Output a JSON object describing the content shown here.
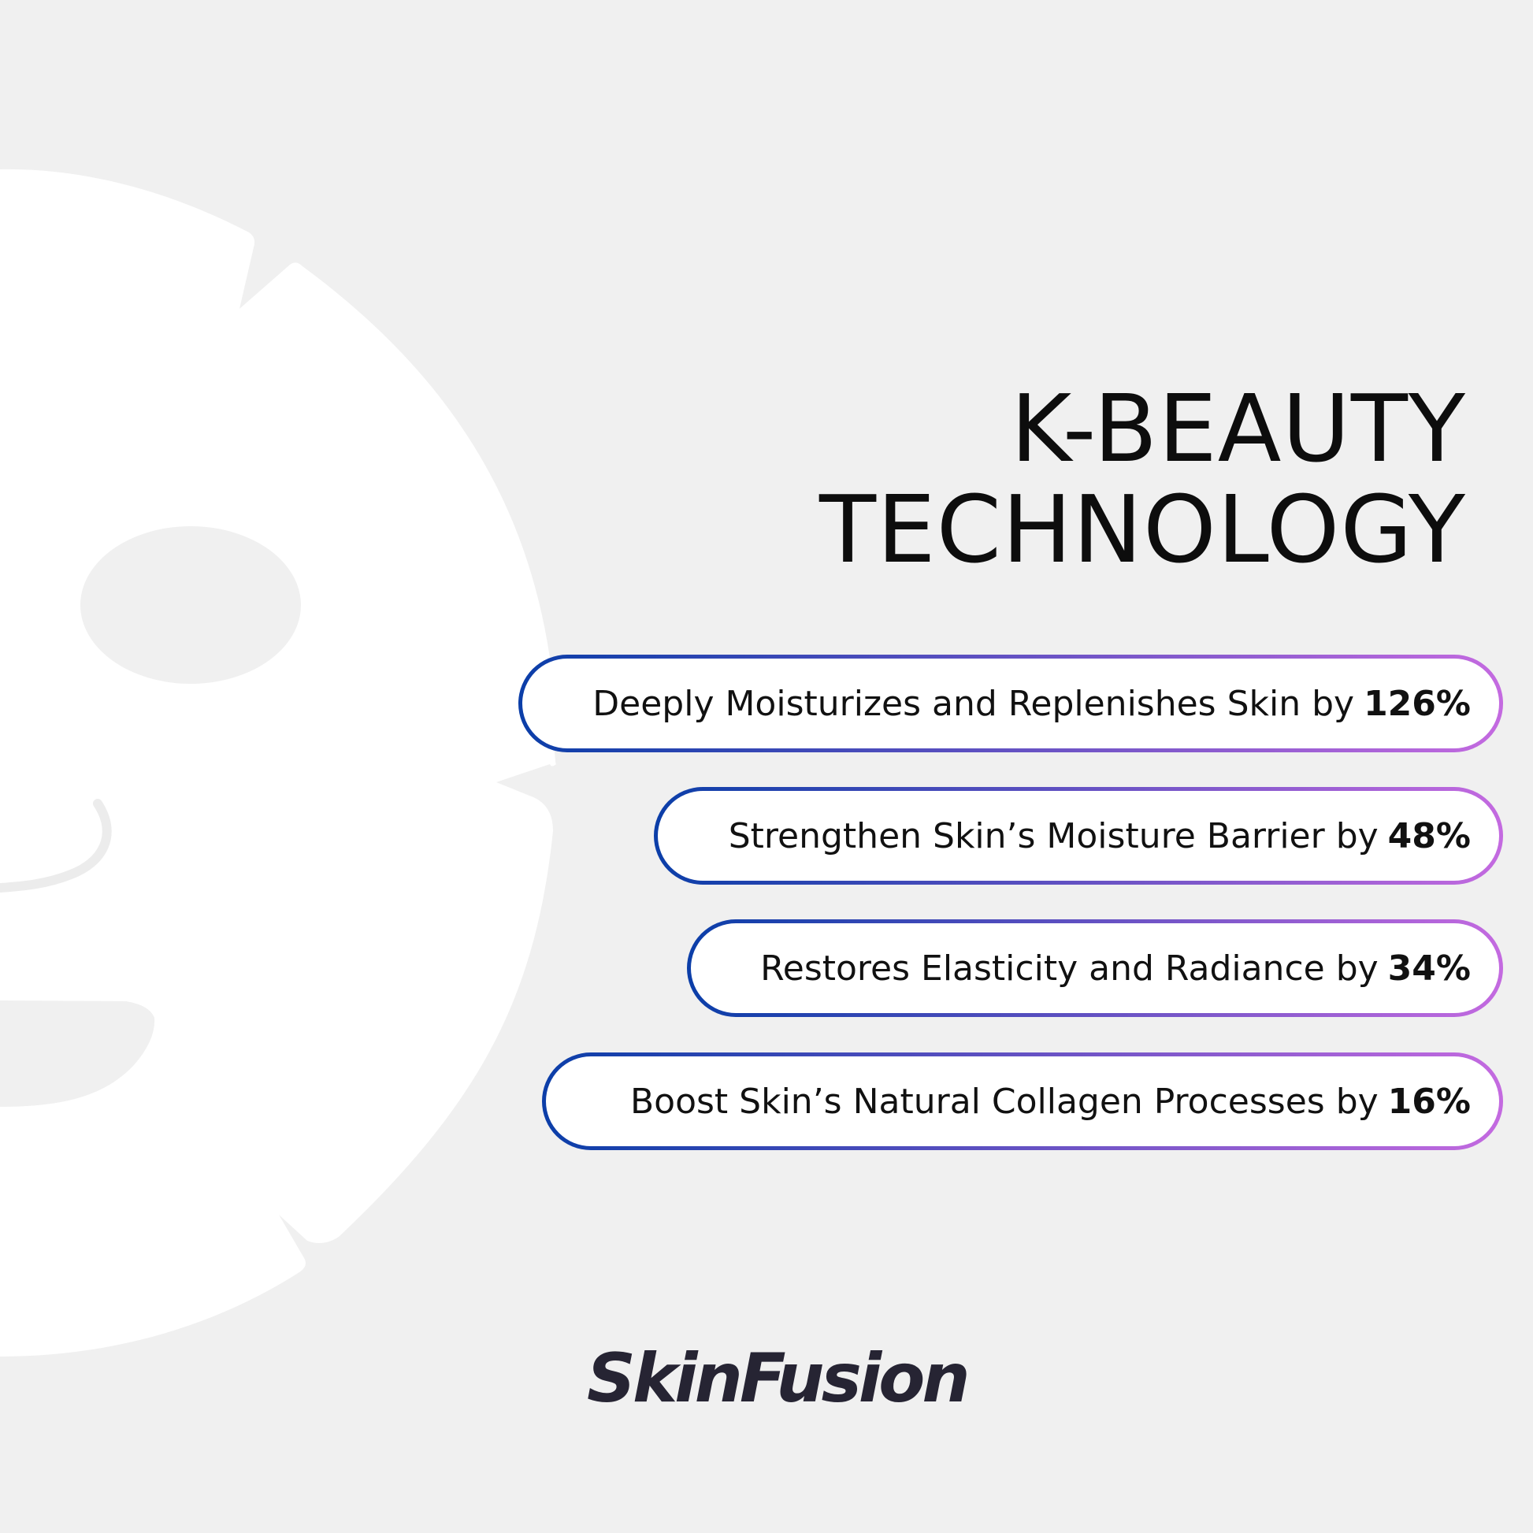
{
  "title": {
    "line1": "K-BEAUTY",
    "line2": "TECHNOLOGY"
  },
  "benefits": [
    {
      "label": "Deeply Moisturizes and Replenishes Skin by",
      "value": "126%"
    },
    {
      "label": "Strengthen Skin’s Moisture Barrier by",
      "value": "48%"
    },
    {
      "label": "Restores Elasticity and Radiance by",
      "value": "34%"
    },
    {
      "label": "Boost Skin’s Natural Collagen Processes by",
      "value": "16%"
    }
  ],
  "brand": {
    "name": "SkinFusion"
  },
  "colors": {
    "background": "#f0f0f0",
    "mask": "#ffffff",
    "gradient_start": "#0b3ea8",
    "gradient_end": "#c46ae0",
    "text": "#111111",
    "brand": "#262433"
  },
  "icons": [
    "face-sheet-mask-illustration"
  ]
}
